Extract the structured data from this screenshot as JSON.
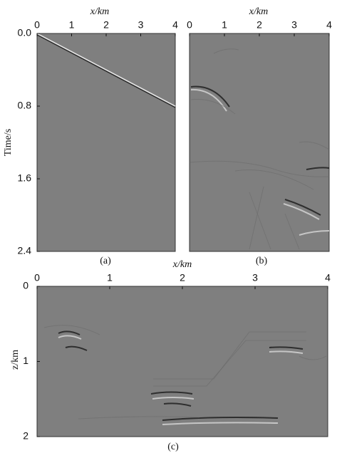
{
  "panels": [
    {
      "label": "(a)",
      "x_label": "x/km",
      "y_label": "Time/s",
      "xlim": [
        0,
        4
      ],
      "xticks": [
        0,
        1,
        2,
        3,
        4
      ],
      "ylim": [
        0,
        2.4
      ],
      "yticks": [
        {
          "value": 0,
          "label": "0.0"
        },
        {
          "value": 0.8,
          "label": "0.8"
        },
        {
          "value": 1.6,
          "label": "1.6"
        },
        {
          "value": 2.4,
          "label": "2.4"
        }
      ]
    },
    {
      "label": "(b)",
      "x_label": "x/km",
      "xlim": [
        0,
        4
      ],
      "xticks": [
        0,
        1,
        2,
        3,
        4
      ],
      "ylim": [
        0,
        2.4
      ]
    },
    {
      "label": "(c)",
      "x_label": "x/km",
      "y_label": "z/km",
      "xlim": [
        0,
        4
      ],
      "xticks": [
        0,
        1,
        2,
        3,
        4
      ],
      "ylim": [
        0,
        2
      ],
      "yticks": [
        0,
        1,
        2
      ]
    }
  ]
}
